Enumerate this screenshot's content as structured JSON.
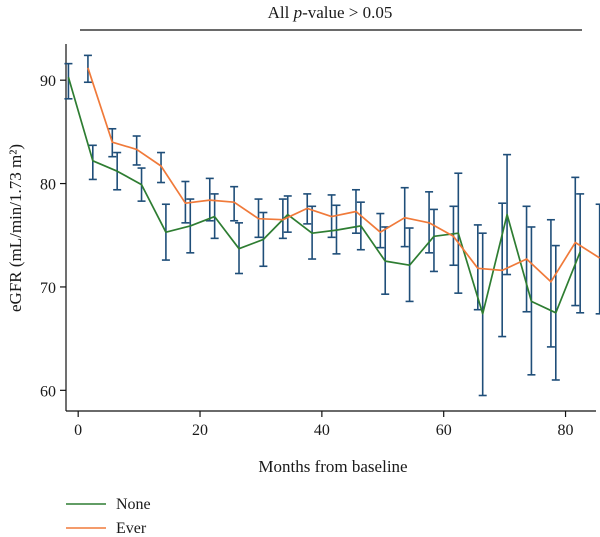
{
  "chart_data": {
    "type": "line",
    "title_prefix": "All ",
    "title_italic": "p",
    "title_suffix": "-value > 0.05",
    "xlabel": "Months from baseline",
    "ylabel": "eGFR (mL/min/1.73 m²)",
    "xlim": [
      -2,
      85
    ],
    "ylim": [
      58,
      93.5
    ],
    "x_ticks": [
      0,
      20,
      40,
      60,
      80
    ],
    "y_ticks": [
      60,
      70,
      80,
      90
    ],
    "grid": false,
    "legend_position": "bottom-left",
    "error_bar_color": "#1f4e79",
    "series": [
      {
        "name": "None",
        "color": "#2e7d32",
        "points": [
          {
            "x": 0,
            "y": 90.3,
            "lo": 88.2,
            "hi": 91.6
          },
          {
            "x": 4,
            "y": 82.2,
            "lo": 80.4,
            "hi": 83.7
          },
          {
            "x": 8,
            "y": 81.2,
            "lo": 79.4,
            "hi": 83.0
          },
          {
            "x": 12,
            "y": 79.9,
            "lo": 78.3,
            "hi": 81.5
          },
          {
            "x": 16,
            "y": 75.3,
            "lo": 72.6,
            "hi": 78.0
          },
          {
            "x": 20,
            "y": 75.9,
            "lo": 73.3,
            "hi": 78.5
          },
          {
            "x": 24,
            "y": 76.8,
            "lo": 74.7,
            "hi": 79.0
          },
          {
            "x": 28,
            "y": 73.7,
            "lo": 71.3,
            "hi": 76.2
          },
          {
            "x": 32,
            "y": 74.6,
            "lo": 72.0,
            "hi": 77.2
          },
          {
            "x": 36,
            "y": 77.0,
            "lo": 75.3,
            "hi": 78.8
          },
          {
            "x": 40,
            "y": 75.2,
            "lo": 72.7,
            "hi": 77.8
          },
          {
            "x": 44,
            "y": 75.5,
            "lo": 73.2,
            "hi": 77.9
          },
          {
            "x": 48,
            "y": 75.9,
            "lo": 73.6,
            "hi": 78.2
          },
          {
            "x": 52,
            "y": 72.5,
            "lo": 69.3,
            "hi": 75.8
          },
          {
            "x": 56,
            "y": 72.1,
            "lo": 68.6,
            "hi": 75.7
          },
          {
            "x": 60,
            "y": 74.9,
            "lo": 71.5,
            "hi": 77.5
          },
          {
            "x": 64,
            "y": 75.2,
            "lo": 69.4,
            "hi": 81.0
          },
          {
            "x": 68,
            "y": 67.4,
            "lo": 59.5,
            "hi": 75.2
          },
          {
            "x": 72,
            "y": 77.0,
            "lo": 71.2,
            "hi": 82.8
          },
          {
            "x": 76,
            "y": 68.6,
            "lo": 61.5,
            "hi": 75.8
          },
          {
            "x": 80,
            "y": 67.5,
            "lo": 61.0,
            "hi": 74.0
          },
          {
            "x": 84,
            "y": 73.4,
            "lo": 67.5,
            "hi": 79.0
          }
        ]
      },
      {
        "name": "Ever",
        "color": "#f07a3a",
        "points": [
          {
            "x": 0,
            "y": 91.2,
            "lo": 89.8,
            "hi": 92.4
          },
          {
            "x": 4,
            "y": 84.0,
            "lo": 82.6,
            "hi": 85.3
          },
          {
            "x": 8,
            "y": 83.3,
            "lo": 81.8,
            "hi": 84.6
          },
          {
            "x": 12,
            "y": 81.7,
            "lo": 80.1,
            "hi": 83.0
          },
          {
            "x": 16,
            "y": 78.1,
            "lo": 76.2,
            "hi": 80.2
          },
          {
            "x": 20,
            "y": 78.4,
            "lo": 76.4,
            "hi": 80.5
          },
          {
            "x": 24,
            "y": 78.2,
            "lo": 76.4,
            "hi": 79.7
          },
          {
            "x": 28,
            "y": 76.6,
            "lo": 74.8,
            "hi": 78.5
          },
          {
            "x": 32,
            "y": 76.5,
            "lo": 74.7,
            "hi": 78.5
          },
          {
            "x": 36,
            "y": 77.6,
            "lo": 76.1,
            "hi": 79.0
          },
          {
            "x": 40,
            "y": 76.8,
            "lo": 74.8,
            "hi": 78.9
          },
          {
            "x": 44,
            "y": 77.3,
            "lo": 75.2,
            "hi": 79.4
          },
          {
            "x": 48,
            "y": 75.3,
            "lo": 73.8,
            "hi": 77.1
          },
          {
            "x": 52,
            "y": 76.7,
            "lo": 73.9,
            "hi": 79.6
          },
          {
            "x": 56,
            "y": 76.2,
            "lo": 73.3,
            "hi": 79.2
          },
          {
            "x": 60,
            "y": 74.9,
            "lo": 72.1,
            "hi": 77.8
          },
          {
            "x": 64,
            "y": 71.8,
            "lo": 67.8,
            "hi": 76.0
          },
          {
            "x": 68,
            "y": 71.6,
            "lo": 65.2,
            "hi": 78.1
          },
          {
            "x": 72,
            "y": 72.7,
            "lo": 67.6,
            "hi": 77.8
          },
          {
            "x": 76,
            "y": 70.5,
            "lo": 64.2,
            "hi": 76.5
          },
          {
            "x": 80,
            "y": 74.3,
            "lo": 68.2,
            "hi": 80.6
          },
          {
            "x": 84,
            "y": 72.8,
            "lo": 67.4,
            "hi": 78.0
          }
        ]
      }
    ]
  }
}
